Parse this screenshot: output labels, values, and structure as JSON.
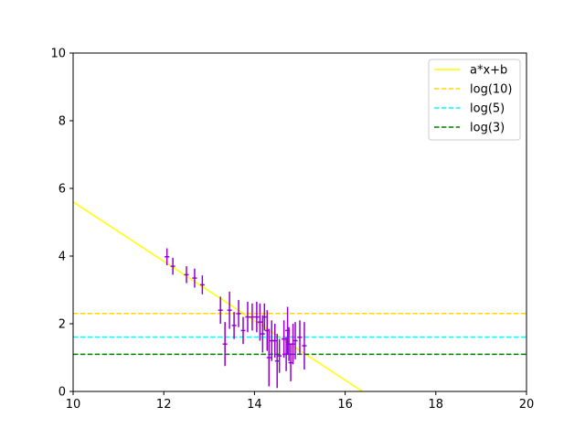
{
  "chart_data": {
    "type": "scatter",
    "title": "",
    "xlabel": "",
    "ylabel": "",
    "xlim": [
      10,
      20
    ],
    "ylim": [
      0,
      10
    ],
    "xticks": [
      10,
      12,
      14,
      16,
      18,
      20
    ],
    "yticks": [
      0,
      2,
      4,
      6,
      8,
      10
    ],
    "xtick_labels": [
      "10",
      "12",
      "14",
      "16",
      "18",
      "20"
    ],
    "ytick_labels": [
      "0",
      "2",
      "4",
      "6",
      "8",
      "10"
    ],
    "grid": false,
    "legend_position": "top-right",
    "legend": [
      {
        "label": "a*x+b",
        "color": "#ffff00",
        "style": "solid"
      },
      {
        "label": "log(10)",
        "color": "#ffd700",
        "style": "dashed"
      },
      {
        "label": "log(5)",
        "color": "#00ffff",
        "style": "dashed"
      },
      {
        "label": "log(3)",
        "color": "#008000",
        "style": "dashed"
      }
    ],
    "lines": [
      {
        "name": "a*x+b",
        "type": "linear",
        "x": [
          10,
          16.38
        ],
        "y": [
          5.6,
          0
        ],
        "color": "#ffff00",
        "style": "solid"
      },
      {
        "name": "log(10)",
        "type": "horizontal",
        "y": 2.3026,
        "color": "#ffd700",
        "style": "dashed"
      },
      {
        "name": "log(5)",
        "type": "horizontal",
        "y": 1.6094,
        "color": "#00ffff",
        "style": "dashed"
      },
      {
        "name": "log(3)",
        "type": "horizontal",
        "y": 1.0986,
        "color": "#008000",
        "style": "dashed"
      }
    ],
    "errorbar_series": {
      "color": "#9400d3",
      "points": [
        {
          "x": 12.07,
          "y": 3.98,
          "yerr": 0.25,
          "xerr": 0.05
        },
        {
          "x": 12.2,
          "y": 3.7,
          "yerr": 0.25,
          "xerr": 0.05
        },
        {
          "x": 12.5,
          "y": 3.45,
          "yerr": 0.25,
          "xerr": 0.05
        },
        {
          "x": 12.68,
          "y": 3.35,
          "yerr": 0.28,
          "xerr": 0.05
        },
        {
          "x": 12.85,
          "y": 3.15,
          "yerr": 0.28,
          "xerr": 0.05
        },
        {
          "x": 13.25,
          "y": 2.4,
          "yerr": 0.4,
          "xerr": 0.05
        },
        {
          "x": 13.35,
          "y": 1.4,
          "yerr": 0.65,
          "xerr": 0.05
        },
        {
          "x": 13.45,
          "y": 2.4,
          "yerr": 0.55,
          "xerr": 0.05
        },
        {
          "x": 13.55,
          "y": 1.95,
          "yerr": 0.4,
          "xerr": 0.05
        },
        {
          "x": 13.65,
          "y": 2.3,
          "yerr": 0.4,
          "xerr": 0.05
        },
        {
          "x": 13.75,
          "y": 1.8,
          "yerr": 0.4,
          "xerr": 0.05
        },
        {
          "x": 13.85,
          "y": 2.2,
          "yerr": 0.45,
          "xerr": 0.05
        },
        {
          "x": 13.95,
          "y": 2.2,
          "yerr": 0.4,
          "xerr": 0.05
        },
        {
          "x": 14.05,
          "y": 2.2,
          "yerr": 0.45,
          "xerr": 0.05
        },
        {
          "x": 14.12,
          "y": 2.05,
          "yerr": 0.55,
          "xerr": 0.05
        },
        {
          "x": 14.18,
          "y": 1.7,
          "yerr": 0.55,
          "xerr": 0.05
        },
        {
          "x": 14.22,
          "y": 2.2,
          "yerr": 0.4,
          "xerr": 0.05
        },
        {
          "x": 14.28,
          "y": 1.8,
          "yerr": 0.6,
          "xerr": 0.05
        },
        {
          "x": 14.32,
          "y": 1.0,
          "yerr": 0.85,
          "xerr": 0.05
        },
        {
          "x": 14.38,
          "y": 1.5,
          "yerr": 0.6,
          "xerr": 0.05
        },
        {
          "x": 14.45,
          "y": 1.5,
          "yerr": 0.5,
          "xerr": 0.05
        },
        {
          "x": 14.5,
          "y": 0.9,
          "yerr": 0.8,
          "xerr": 0.05
        },
        {
          "x": 14.55,
          "y": 1.05,
          "yerr": 0.5,
          "xerr": 0.05
        },
        {
          "x": 14.65,
          "y": 1.55,
          "yerr": 0.55,
          "xerr": 0.05
        },
        {
          "x": 14.7,
          "y": 1.1,
          "yerr": 0.5,
          "xerr": 0.05
        },
        {
          "x": 14.73,
          "y": 1.8,
          "yerr": 0.7,
          "xerr": 0.05
        },
        {
          "x": 14.76,
          "y": 1.4,
          "yerr": 0.5,
          "xerr": 0.05
        },
        {
          "x": 14.8,
          "y": 0.85,
          "yerr": 0.55,
          "xerr": 0.05
        },
        {
          "x": 14.85,
          "y": 1.4,
          "yerr": 0.6,
          "xerr": 0.05
        },
        {
          "x": 14.9,
          "y": 1.5,
          "yerr": 0.55,
          "xerr": 0.05
        },
        {
          "x": 15.0,
          "y": 1.6,
          "yerr": 0.5,
          "xerr": 0.05
        },
        {
          "x": 15.1,
          "y": 1.35,
          "yerr": 0.7,
          "xerr": 0.05
        }
      ]
    }
  }
}
